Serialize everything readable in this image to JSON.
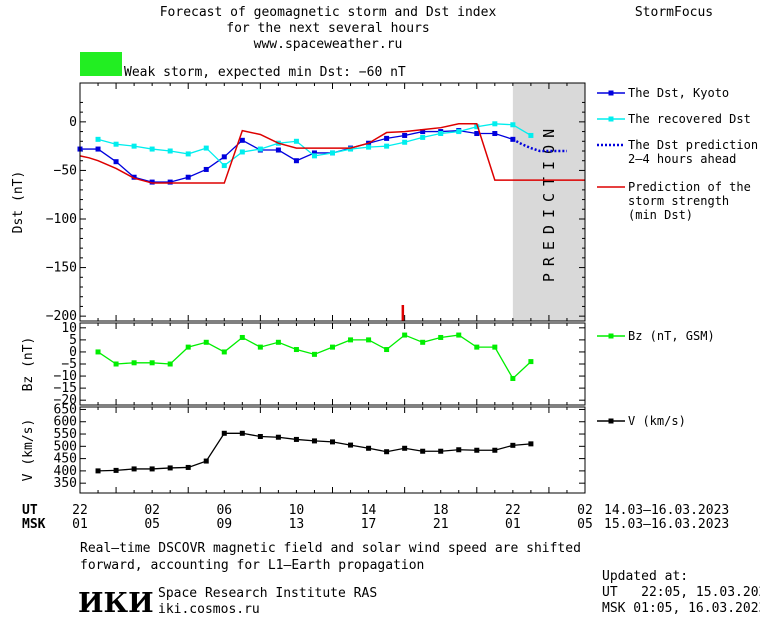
{
  "header": {
    "title_lines": [
      "Forecast of geomagnetic storm and Dst index",
      "for the next several hours",
      "www.spaceweather.ru"
    ],
    "brand": "StormFocus",
    "status_text": "Weak storm, expected min Dst: −60 nT",
    "status_color": "#22ee22"
  },
  "prediction_label": "PREDICTION",
  "time_axis": {
    "ut_label": "UT",
    "msk_label": "MSK",
    "ut_ticks": [
      "22",
      "02",
      "06",
      "10",
      "14",
      "18",
      "22",
      "02"
    ],
    "msk_ticks": [
      "01",
      "05",
      "09",
      "13",
      "17",
      "21",
      "01",
      "05"
    ],
    "ut_range": "14.03–16.03.2023",
    "msk_range": "15.03–16.03.2023"
  },
  "footer": {
    "note_lines": [
      "Real–time DSCOVR magnetic field and solar wind speed are shifted",
      "forward, accounting for L1–Earth propagation"
    ],
    "logo_text": "ИКИ",
    "institute": "Space Research Institute RAS",
    "site": "iki.cosmos.ru",
    "updated_label": "Updated at:",
    "updated_ut": "UT   22:05, 15.03.2023",
    "updated_msk": "MSK 01:05, 16.03.2023"
  },
  "chart_data": [
    {
      "type": "line",
      "ylabel": "Dst (nT)",
      "ylim": [
        -205,
        40
      ],
      "yticks": [
        0,
        -50,
        -100,
        -150,
        -200
      ],
      "x_unit": "hours since 22 UT 14.03.2023",
      "xlim": [
        0,
        28
      ],
      "prediction_region": [
        24,
        28
      ],
      "storm_marker_x": 17.9,
      "legend": [
        {
          "label": "The Dst, Kyoto",
          "color": "#0000dd",
          "style": "solid-square"
        },
        {
          "label": "The recovered Dst",
          "color": "#00eeee",
          "style": "solid-square"
        },
        {
          "label": "The Dst prediction\n2–4 hours ahead",
          "color": "#0000dd",
          "style": "dotted"
        },
        {
          "label": "Prediction of the\nstorm strength\n(min Dst)",
          "color": "#dd0000",
          "style": "solid"
        }
      ],
      "series": [
        {
          "name": "The Dst, Kyoto",
          "color": "#0000dd",
          "x": [
            0,
            1,
            2,
            3,
            4,
            5,
            6,
            7,
            8,
            9,
            10,
            11,
            12,
            13,
            14,
            15,
            16,
            17,
            18,
            19,
            20,
            21,
            22,
            23,
            24
          ],
          "y": [
            -28,
            -28,
            -41,
            -57,
            -62,
            -62,
            -57,
            -49,
            -36,
            -19,
            -29,
            -29,
            -40,
            -32,
            -32,
            -27,
            -22,
            -17,
            -14,
            -10,
            -10,
            -9,
            -12,
            -12,
            -18
          ]
        },
        {
          "name": "The recovered Dst",
          "color": "#00eeee",
          "x": [
            1,
            2,
            3,
            4,
            5,
            6,
            7,
            8,
            9,
            10,
            11,
            12,
            13,
            14,
            15,
            16,
            17,
            18,
            19,
            20,
            21,
            22,
            23,
            24,
            25
          ],
          "y": [
            -18,
            -23,
            -25,
            -28,
            -30,
            -33,
            -27,
            -45,
            -31,
            -28,
            -22,
            -20,
            -35,
            -32,
            -28,
            -26,
            -25,
            -21,
            -16,
            -12,
            -10,
            -5,
            -2,
            -3,
            -14
          ]
        },
        {
          "name": "The Dst prediction 2–4 hours ahead",
          "color": "#0000dd",
          "x": [
            24,
            24.5,
            25,
            25.5,
            26,
            26.5,
            27
          ],
          "y": [
            -18,
            -23,
            -27,
            -30,
            -30,
            -30,
            -30
          ]
        },
        {
          "name": "Prediction of the storm strength (min Dst)",
          "color": "#dd0000",
          "x": [
            0,
            0.5,
            1,
            2,
            3,
            4,
            5,
            6,
            7,
            8,
            9,
            10,
            11,
            12,
            13,
            14,
            15,
            16,
            17,
            18,
            19,
            20,
            21,
            22,
            23,
            24,
            25,
            26,
            27,
            28
          ],
          "y": [
            -35,
            -37,
            -40,
            -48,
            -58,
            -63,
            -63,
            -63,
            -63,
            -63,
            -9,
            -13,
            -22,
            -27,
            -27,
            -27,
            -27,
            -22,
            -11,
            -10,
            -8,
            -6,
            -2,
            -2,
            -60,
            -60,
            -60,
            -60,
            -60,
            -60
          ]
        }
      ]
    },
    {
      "type": "line",
      "ylabel": "Bz (nT)",
      "ylim": [
        -22,
        12
      ],
      "yticks": [
        10,
        5,
        0,
        -5,
        -10,
        -15,
        -20
      ],
      "ytick_labels": [
        "10",
        "5",
        "0",
        "−5",
        "−10",
        "−15",
        "−20"
      ],
      "x_unit": "hours since 22 UT 14.03.2023",
      "xlim": [
        0,
        28
      ],
      "legend": [
        {
          "label": "Bz (nT, GSM)",
          "color": "#00ee00",
          "style": "solid-square"
        }
      ],
      "series": [
        {
          "name": "Bz (nT, GSM)",
          "color": "#00ee00",
          "x": [
            1,
            2,
            3,
            4,
            5,
            6,
            7,
            8,
            9,
            10,
            11,
            12,
            13,
            14,
            15,
            16,
            17,
            18,
            19,
            20,
            21,
            22,
            23,
            24,
            25
          ],
          "y": [
            0,
            -5,
            -4.5,
            -4.5,
            -5,
            2,
            4,
            0,
            6,
            2,
            4,
            1,
            -1,
            2,
            5,
            5,
            1,
            7,
            4,
            6,
            7,
            2,
            2,
            -11,
            -4
          ]
        }
      ]
    },
    {
      "type": "line",
      "ylabel": "V (km/s)",
      "ylim": [
        310,
        660
      ],
      "yticks": [
        350,
        400,
        450,
        500,
        550,
        600,
        650
      ],
      "x_unit": "hours since 22 UT 14.03.2023",
      "xlim": [
        0,
        28
      ],
      "legend": [
        {
          "label": "V (km/s)",
          "color": "#000000",
          "style": "solid-square"
        }
      ],
      "series": [
        {
          "name": "V (km/s)",
          "color": "#000000",
          "x": [
            1,
            2,
            3,
            4,
            5,
            6,
            7,
            8,
            9,
            10,
            11,
            12,
            13,
            14,
            15,
            16,
            17,
            18,
            19,
            20,
            21,
            22,
            23,
            24,
            25
          ],
          "y": [
            400,
            402,
            408,
            408,
            412,
            414,
            440,
            553,
            553,
            540,
            537,
            528,
            522,
            518,
            505,
            492,
            478,
            492,
            480,
            480,
            486,
            484,
            484,
            504,
            510
          ]
        }
      ]
    }
  ]
}
